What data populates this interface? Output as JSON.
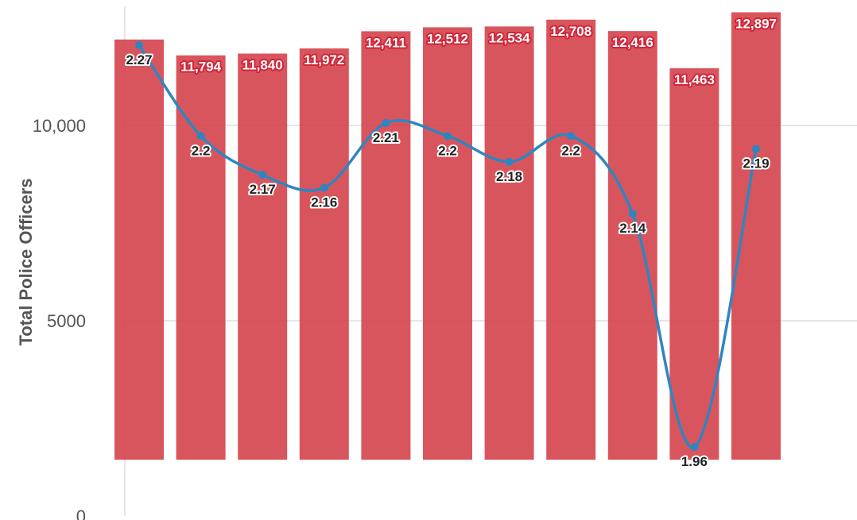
{
  "chart_data": {
    "type": "bar",
    "ylabel": "Total Police Officers",
    "yticks": [
      "0",
      "5000",
      "10,000"
    ],
    "ylim": [
      0,
      13000
    ],
    "grid": true,
    "series": [
      {
        "type": "bar",
        "values": [
          12200,
          11794,
          11840,
          11972,
          12411,
          12512,
          12534,
          12708,
          12416,
          11463,
          12897
        ],
        "labels": [
          "",
          "11,794",
          "11,840",
          "11,972",
          "12,411",
          "12,512",
          "12,534",
          "12,708",
          "12,416",
          "11,463",
          "12,897"
        ],
        "color": "#d6474f"
      },
      {
        "type": "line",
        "values": [
          2.27,
          2.2,
          2.17,
          2.16,
          2.21,
          2.2,
          2.18,
          2.2,
          2.14,
          1.96,
          2.19
        ],
        "labels": [
          "2.27",
          "2.2",
          "2.17",
          "2.16",
          "2.21",
          "2.2",
          "2.18",
          "2.2",
          "2.14",
          "1.96",
          "2.19"
        ],
        "color": "#2e86c1"
      }
    ],
    "colors": {
      "bar_label_outline": "#d0263a",
      "grid": "#e6e6e6"
    }
  }
}
